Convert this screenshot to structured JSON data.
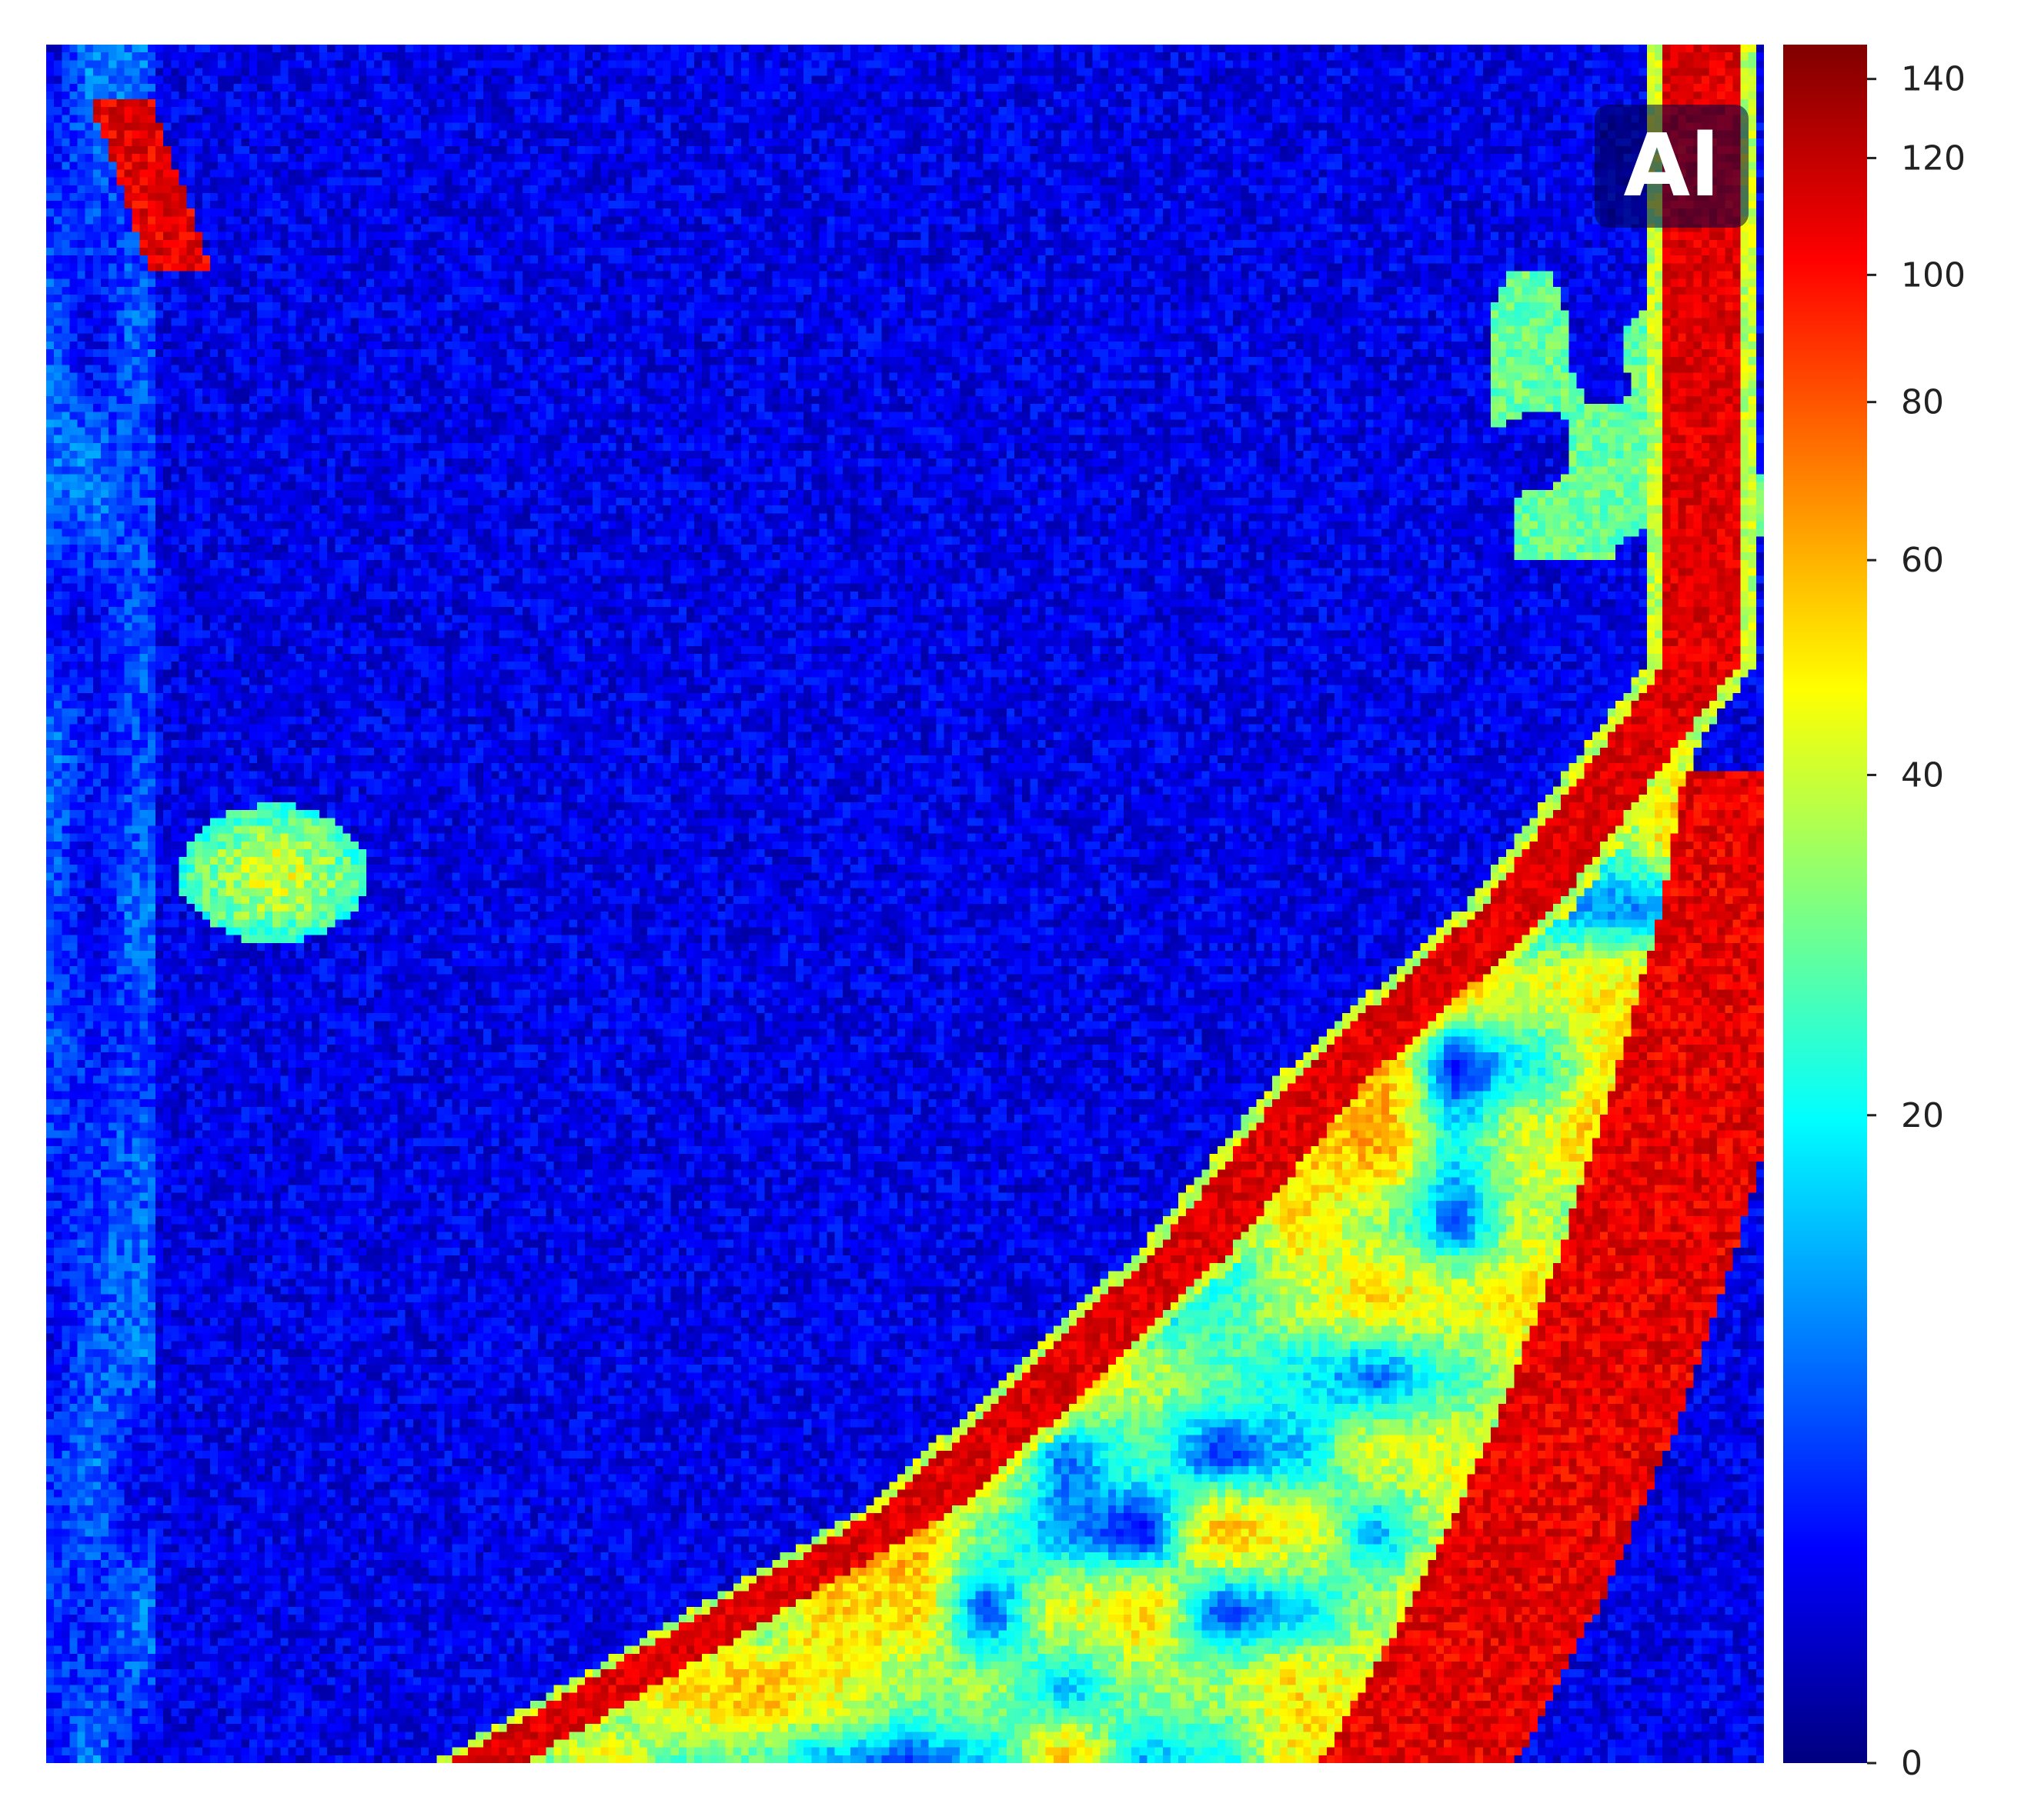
{
  "chart_data": {
    "type": "heatmap",
    "title": "",
    "annotation": "Al",
    "colormap": "jet",
    "value_range": [
      0,
      142
    ],
    "colorbar": {
      "ticks": [
        0,
        20,
        40,
        60,
        80,
        100,
        120,
        140
      ],
      "tick_labels": [
        "0",
        "20",
        "40",
        "60",
        "80",
        "100",
        "120",
        "140"
      ],
      "scale": "nonlinear (compressed below 20)",
      "placement": "right"
    },
    "grid": false,
    "axes_visible": false,
    "features": [
      {
        "name": "background",
        "approx_value": 5
      },
      {
        "name": "outer band",
        "approx_value": 115
      },
      {
        "name": "inner band",
        "approx_value": 115
      },
      {
        "name": "porous region between bands",
        "approx_value": 35
      },
      {
        "name": "top-left streak",
        "approx_value": 115
      },
      {
        "name": "left-center blob",
        "approx_value": 50
      }
    ]
  }
}
